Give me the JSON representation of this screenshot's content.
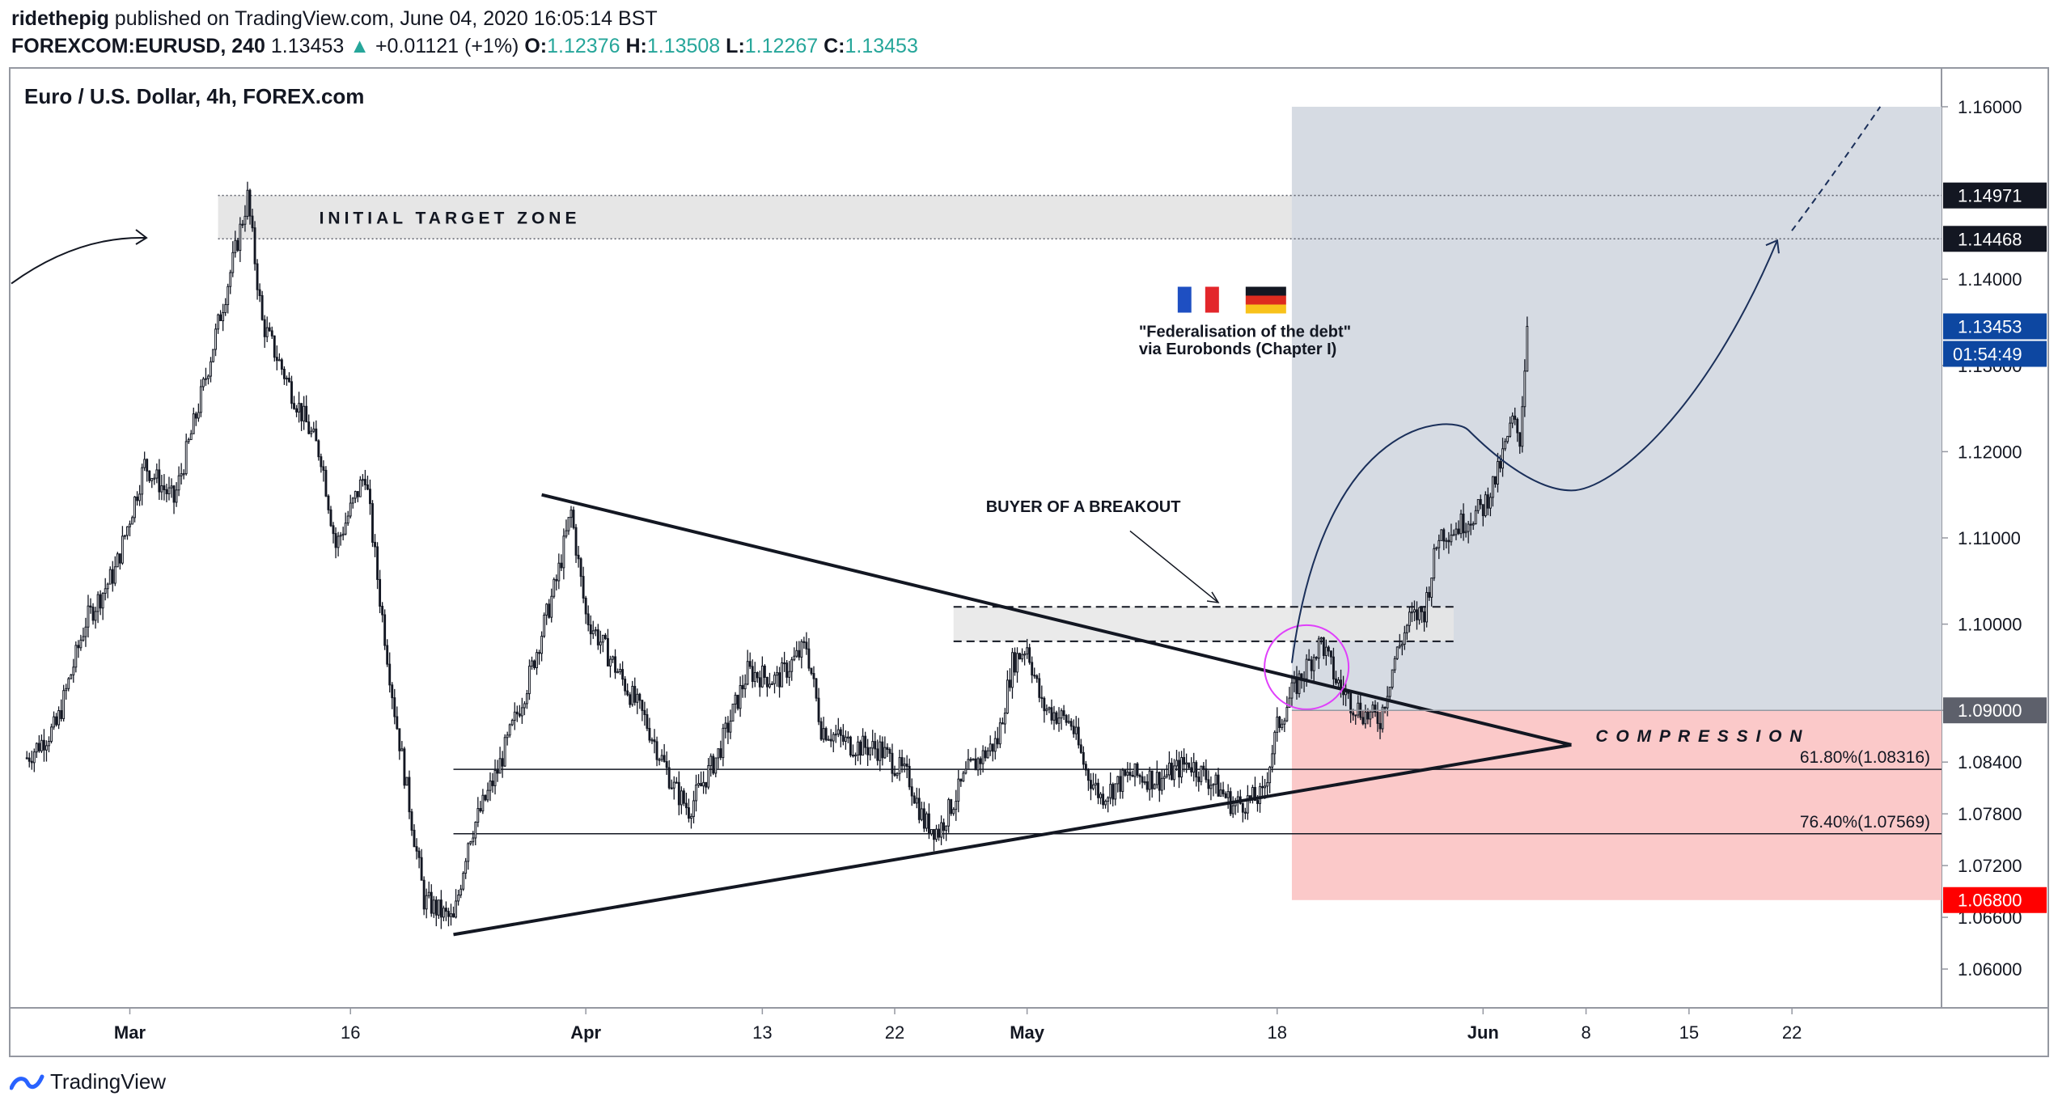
{
  "header": {
    "author": "ridethepig",
    "published_text": "published on TradingView.com, June 04, 2020 16:05:14 BST",
    "symbol": "FOREXCOM:EURUSD, 240",
    "last": "1.13453",
    "change": "+0.01121 (+1%)",
    "o_label": "O:",
    "o": "1.12376",
    "h_label": "H:",
    "h": "1.13508",
    "l_label": "L:",
    "l": "1.12267",
    "c_label": "C:",
    "c": "1.13453"
  },
  "chart_title": "Euro / U.S. Dollar, 4h, FOREX.com",
  "footer": {
    "brand": "TradingView"
  },
  "colors": {
    "up": "#26a69a",
    "candle_up_fill": "#ffffff",
    "candle_down_fill": "#131722",
    "target_zone": "#e6e6e6",
    "projection_zone": "#d6dbe3",
    "risk_zone": "#fbc9c9",
    "label_dark": "#131722",
    "label_blue": "#0d47a1",
    "label_red": "#ff0000",
    "label_gray": "#5d606b",
    "circle": "#e040fb",
    "projection_curve": "#1a2f5a"
  },
  "chart_data": {
    "type": "candlestick",
    "title": "Euro / U.S. Dollar, 4h, FOREX.com",
    "timeframe": "4h",
    "y_range": [
      1.0555,
      1.1645
    ],
    "y_ticks": [
      "1.16000",
      "1.14000",
      "1.13000",
      "1.12000",
      "1.11000",
      "1.10000",
      "1.09000",
      "1.08400",
      "1.07800",
      "1.07200",
      "1.06600",
      "1.06000"
    ],
    "x_ticks": [
      {
        "label": "Mar",
        "date": "2020-03-01"
      },
      {
        "label": "16",
        "date": "2020-03-16"
      },
      {
        "label": "Apr",
        "date": "2020-04-01"
      },
      {
        "label": "13",
        "date": "2020-04-13"
      },
      {
        "label": "22",
        "date": "2020-04-22"
      },
      {
        "label": "May",
        "date": "2020-05-01"
      },
      {
        "label": "18",
        "date": "2020-05-18"
      },
      {
        "label": "Jun",
        "date": "2020-06-01"
      },
      {
        "label": "8",
        "date": "2020-06-08"
      },
      {
        "label": "15",
        "date": "2020-06-15"
      },
      {
        "label": "22",
        "date": "2020-06-22"
      }
    ],
    "price_path": [
      {
        "date": "2020-02-23",
        "price": 1.0845
      },
      {
        "date": "2020-02-25",
        "price": 1.0882
      },
      {
        "date": "2020-02-27",
        "price": 1.1003
      },
      {
        "date": "2020-02-29",
        "price": 1.1062
      },
      {
        "date": "2020-03-02",
        "price": 1.1185
      },
      {
        "date": "2020-03-04",
        "price": 1.1143
      },
      {
        "date": "2020-03-06",
        "price": 1.1275
      },
      {
        "date": "2020-03-08",
        "price": 1.142
      },
      {
        "date": "2020-03-09",
        "price": 1.1495
      },
      {
        "date": "2020-03-10",
        "price": 1.135
      },
      {
        "date": "2020-03-12",
        "price": 1.127
      },
      {
        "date": "2020-03-14",
        "price": 1.1195
      },
      {
        "date": "2020-03-15",
        "price": 1.109
      },
      {
        "date": "2020-03-17",
        "price": 1.1175
      },
      {
        "date": "2020-03-18",
        "price": 1.103
      },
      {
        "date": "2020-03-19",
        "price": 1.09
      },
      {
        "date": "2020-03-20",
        "price": 1.079
      },
      {
        "date": "2020-03-21",
        "price": 1.068
      },
      {
        "date": "2020-03-23",
        "price": 1.0655
      },
      {
        "date": "2020-03-24",
        "price": 1.075
      },
      {
        "date": "2020-03-26",
        "price": 1.083
      },
      {
        "date": "2020-03-28",
        "price": 1.093
      },
      {
        "date": "2020-03-30",
        "price": 1.105
      },
      {
        "date": "2020-03-31",
        "price": 1.113
      },
      {
        "date": "2020-04-01",
        "price": 1.101
      },
      {
        "date": "2020-04-03",
        "price": 1.095
      },
      {
        "date": "2020-04-05",
        "price": 1.089
      },
      {
        "date": "2020-04-07",
        "price": 1.081
      },
      {
        "date": "2020-04-08",
        "price": 1.0785
      },
      {
        "date": "2020-04-10",
        "price": 1.085
      },
      {
        "date": "2020-04-12",
        "price": 1.0945
      },
      {
        "date": "2020-04-14",
        "price": 1.0935
      },
      {
        "date": "2020-04-16",
        "price": 1.0975
      },
      {
        "date": "2020-04-17",
        "price": 1.088
      },
      {
        "date": "2020-04-19",
        "price": 1.086
      },
      {
        "date": "2020-04-21",
        "price": 1.0855
      },
      {
        "date": "2020-04-23",
        "price": 1.082
      },
      {
        "date": "2020-04-24",
        "price": 1.077
      },
      {
        "date": "2020-04-25",
        "price": 1.076
      },
      {
        "date": "2020-04-27",
        "price": 1.083
      },
      {
        "date": "2020-04-29",
        "price": 1.0865
      },
      {
        "date": "2020-04-30",
        "price": 1.0955
      },
      {
        "date": "2020-05-01",
        "price": 1.0975
      },
      {
        "date": "2020-05-02",
        "price": 1.0905
      },
      {
        "date": "2020-05-04",
        "price": 1.0885
      },
      {
        "date": "2020-05-05",
        "price": 1.083
      },
      {
        "date": "2020-05-06",
        "price": 1.08
      },
      {
        "date": "2020-05-08",
        "price": 1.0825
      },
      {
        "date": "2020-05-10",
        "price": 1.082
      },
      {
        "date": "2020-05-12",
        "price": 1.084
      },
      {
        "date": "2020-05-14",
        "price": 1.081
      },
      {
        "date": "2020-05-15",
        "price": 1.079
      },
      {
        "date": "2020-05-17",
        "price": 1.08
      },
      {
        "date": "2020-05-18",
        "price": 1.088
      },
      {
        "date": "2020-05-19",
        "price": 1.092
      },
      {
        "date": "2020-05-20",
        "price": 1.095
      },
      {
        "date": "2020-05-21",
        "price": 1.098
      },
      {
        "date": "2020-05-22",
        "price": 1.0935
      },
      {
        "date": "2020-05-23",
        "price": 1.091
      },
      {
        "date": "2020-05-24",
        "price": 1.0895
      },
      {
        "date": "2020-05-25",
        "price": 1.089
      },
      {
        "date": "2020-05-26",
        "price": 1.096
      },
      {
        "date": "2020-05-27",
        "price": 1.1005
      },
      {
        "date": "2020-05-28",
        "price": 1.1015
      },
      {
        "date": "2020-05-29",
        "price": 1.1105
      },
      {
        "date": "2020-05-30",
        "price": 1.111
      },
      {
        "date": "2020-06-01",
        "price": 1.1135
      },
      {
        "date": "2020-06-02",
        "price": 1.1175
      },
      {
        "date": "2020-06-03",
        "price": 1.1235
      },
      {
        "date": "2020-06-03T12",
        "price": 1.1215
      },
      {
        "date": "2020-06-04",
        "price": 1.1345
      }
    ],
    "last_price": 1.13453,
    "countdown": "01:54:49",
    "price_labels": [
      {
        "value": 1.16,
        "text": "1.16000"
      },
      {
        "value": 1.14971,
        "text": "1.14971",
        "style": "dark"
      },
      {
        "value": 1.14468,
        "text": "1.14468",
        "style": "dark"
      },
      {
        "value": 1.13453,
        "text": "1.13453",
        "style": "blue"
      },
      {
        "value": 1.09,
        "text": "1.09000",
        "style": "gray"
      },
      {
        "value": 1.068,
        "text": "1.06800",
        "style": "red"
      }
    ],
    "zones": [
      {
        "name": "initial-target-zone",
        "label": "INITIAL   TARGET   ZONE",
        "from": 1.14468,
        "to": 1.14971,
        "start": "2020-03-07",
        "end": "right-edge"
      },
      {
        "name": "projection-zone",
        "from": 1.09,
        "to": 1.16,
        "start": "2020-05-19",
        "end": "right-edge"
      },
      {
        "name": "risk-zone",
        "from": 1.068,
        "to": 1.09,
        "start": "2020-05-19",
        "end": "right-edge"
      },
      {
        "name": "breakout-zone",
        "from": 1.098,
        "to": 1.102,
        "start": "2020-04-26",
        "end": "2020-05-30"
      }
    ],
    "fibonacci": [
      {
        "label": "61.80%(1.08316)",
        "value": 1.08316,
        "start": "2020-03-23"
      },
      {
        "label": "76.40%(1.07569)",
        "value": 1.07569,
        "start": "2020-03-23"
      }
    ],
    "triangle": {
      "upper": [
        {
          "date": "2020-03-29",
          "price": 1.115
        },
        {
          "date": "2020-06-07",
          "price": 1.086
        }
      ],
      "lower": [
        {
          "date": "2020-03-23",
          "price": 1.064
        },
        {
          "date": "2020-06-07",
          "price": 1.086
        }
      ]
    },
    "annotations": {
      "breakout_label": "BUYER OF A BREAKOUT",
      "compression_label": "C O M P R E S S I O N",
      "federalisation_line1": "\"Federalisation of the debt\"",
      "federalisation_line2": "via Eurobonds (Chapter I)",
      "flags": [
        "france-flag",
        "germany-flag"
      ]
    },
    "projection_path": [
      {
        "date": "2020-05-19",
        "price": 1.0955
      },
      {
        "date": "2020-05-31",
        "price": 1.1225
      },
      {
        "date": "2020-06-07",
        "price": 1.1155
      },
      {
        "date": "2020-06-15",
        "price": 1.1245
      },
      {
        "date": "2020-06-21",
        "price": 1.1445
      },
      {
        "date": "2020-06-28",
        "price": 1.16
      }
    ]
  }
}
